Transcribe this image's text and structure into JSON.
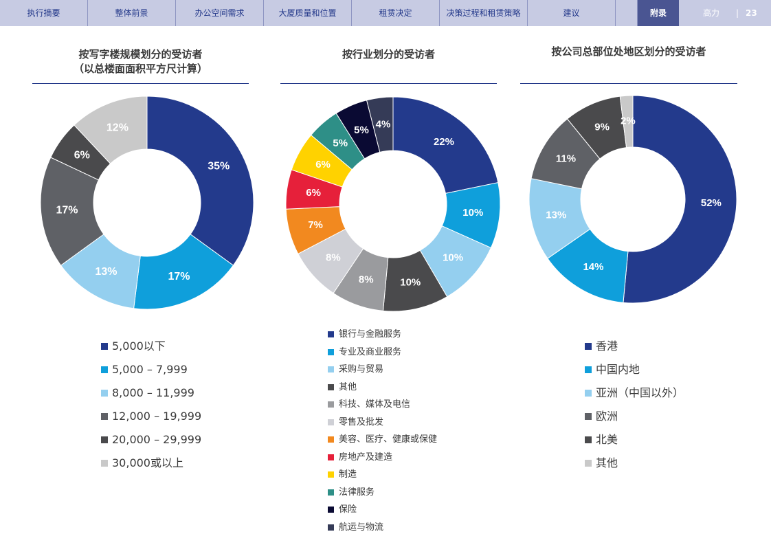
{
  "nav": {
    "items": [
      "执行摘要",
      "整体前景",
      "办公空间需求",
      "大厦质量和位置",
      "租赁决定",
      "决策过程和租赁策略",
      "建议",
      "",
      "附录"
    ],
    "brand": "高力",
    "separator": "|",
    "page_number": "23"
  },
  "chart_data": [
    {
      "type": "pie",
      "title": "按写字楼规模划分的受访者（以总楼面面积平方尺计算）",
      "title_lines": [
        "按写字楼规模划分的受访者",
        "（以总楼面面积平方尺计算）"
      ],
      "categories": [
        "5,000以下",
        "5,000 – 7,999",
        "8,000 – 11,999",
        "12,000 – 19,999",
        "20,000 – 29,999",
        "30,000或以上"
      ],
      "values": [
        35,
        17,
        13,
        17,
        6,
        12
      ],
      "labels": [
        "35%",
        "17%",
        "13%",
        "17%",
        "6%",
        "12%"
      ],
      "colors": [
        "#233a8c",
        "#0f9fdb",
        "#94cfef",
        "#5f6166",
        "#4a4a4c",
        "#c9c9c9"
      ],
      "legend_position": "bottom"
    },
    {
      "type": "pie",
      "title": "按行业划分的受访者",
      "title_lines": [
        "按行业划分的受访者"
      ],
      "categories": [
        "银行与金融服务",
        "专业及商业服务",
        "采购与贸易",
        "其他",
        "科技、媒体及电信",
        "零售及批发",
        "美容、医疗、健康或保健",
        "房地产及建造",
        "制造",
        "法律服务",
        "保险",
        "航运与物流"
      ],
      "values": [
        22,
        10,
        10,
        10,
        8,
        8,
        7,
        6,
        6,
        5,
        5,
        4
      ],
      "labels": [
        "22%",
        "10%",
        "10%",
        "10%",
        "8%",
        "8%",
        "7%",
        "6%",
        "6%",
        "5%",
        "5%",
        "4%"
      ],
      "colors": [
        "#233a8c",
        "#0f9fdb",
        "#94cfef",
        "#4a4a4c",
        "#9a9b9e",
        "#cfd0d6",
        "#f2891f",
        "#e6203a",
        "#ffd200",
        "#2e8f87",
        "#0a0a33",
        "#353b57"
      ],
      "legend_position": "bottom"
    },
    {
      "type": "pie",
      "title": "按公司总部位处地区划分的受访者",
      "title_lines": [
        "按公司总部位处地区划分的受访者"
      ],
      "categories": [
        "香港",
        "中国内地",
        "亚洲（中国以外）",
        "欧洲",
        "北美",
        "其他"
      ],
      "values": [
        52,
        14,
        13,
        11,
        9,
        2
      ],
      "labels": [
        "52%",
        "14%",
        "13%",
        "11%",
        "9%",
        "2%"
      ],
      "colors": [
        "#233a8c",
        "#0f9fdb",
        "#94cfef",
        "#5f6166",
        "#4a4a4c",
        "#c9c9c9"
      ],
      "legend_position": "bottom"
    }
  ]
}
